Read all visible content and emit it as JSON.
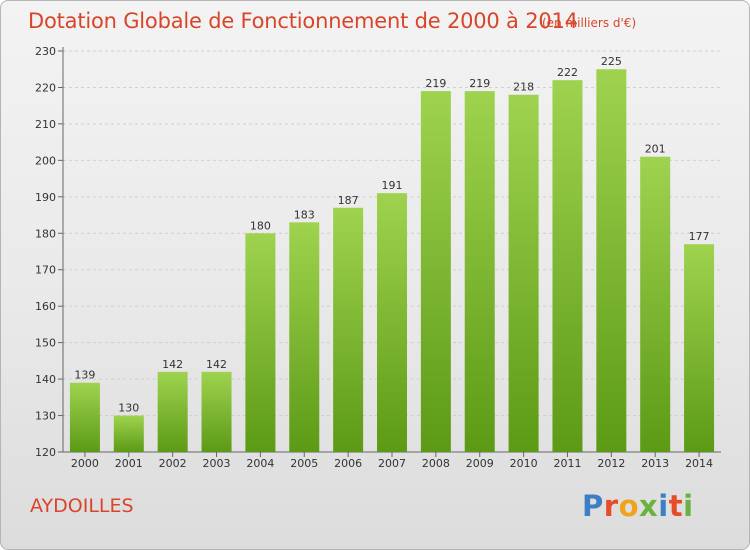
{
  "title": "Dotation Globale de Fonctionnement de 2000 à 2014",
  "subtitle": "(en milliers d'€)",
  "commune": "AYDOILLES",
  "logo": {
    "text": "Proxiti",
    "colors": [
      "#3b7fc4",
      "#e64b2a",
      "#f0a31b",
      "#6ab23f",
      "#3b7fc4",
      "#e64b2a",
      "#6ab23f"
    ]
  },
  "colors": {
    "bar_top": "#9fd34f",
    "bar_bottom": "#5c9a16",
    "title": "#d8452a"
  },
  "chart_data": {
    "type": "bar",
    "title": "Dotation Globale de Fonctionnement de 2000 à 2014",
    "subtitle": "(en milliers d'€)",
    "categories": [
      "2000",
      "2001",
      "2002",
      "2003",
      "2004",
      "2005",
      "2006",
      "2007",
      "2008",
      "2009",
      "2010",
      "2011",
      "2012",
      "2013",
      "2014"
    ],
    "values": [
      139,
      130,
      142,
      142,
      180,
      183,
      187,
      191,
      219,
      219,
      218,
      222,
      225,
      201,
      177
    ],
    "ylim": [
      120,
      230
    ],
    "yticks": [
      120,
      130,
      140,
      150,
      160,
      170,
      180,
      190,
      200,
      210,
      220,
      230
    ],
    "grid": true,
    "xlabel": "",
    "ylabel": ""
  }
}
